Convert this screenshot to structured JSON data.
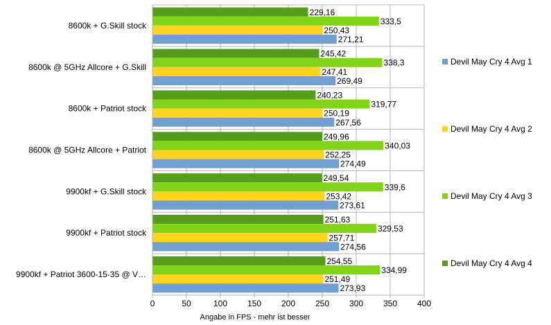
{
  "chart_data": {
    "type": "bar",
    "orientation": "horizontal",
    "title": "",
    "xlabel": "Angabe in FPS - mehr ist besser",
    "ylabel": "",
    "xlim": [
      0,
      400
    ],
    "xticks": [
      0,
      50,
      100,
      150,
      200,
      250,
      300,
      350,
      400
    ],
    "grid": true,
    "legend_position": "right",
    "categories": [
      "8600k + G.Skill stock",
      "8600k @ 5GHz Allcore + G.Skill",
      "8600k + Patriot stock",
      "8600k @ 5GHz Allcore + Patriot",
      "9900kf + G.Skill stock",
      "9900kf + Patriot stock",
      "9900kf + Patriot 3600-15-35 @ V…"
    ],
    "series": [
      {
        "name": "Devil May Cry 4 Avg 1",
        "color": "#729fcf",
        "values": [
          271.21,
          269.49,
          267.56,
          274.49,
          273.61,
          274.56,
          273.93
        ],
        "labels": [
          "271,21",
          "269,49",
          "267,56",
          "274,49",
          "273,61",
          "274,56",
          "273,93"
        ]
      },
      {
        "name": "Devil May Cry 4 Avg 2",
        "color": "#ffd320",
        "values": [
          250.43,
          247.41,
          250.19,
          252.25,
          253.42,
          257.71,
          251.49
        ],
        "labels": [
          "250,43",
          "247,41",
          "250,19",
          "252,25",
          "253,42",
          "257,71",
          "251,49"
        ]
      },
      {
        "name": "Devil May Cry 4 Avg 3",
        "color": "#81d41a",
        "values": [
          333.5,
          338.3,
          319.77,
          340.03,
          339.6,
          329.53,
          334.99
        ],
        "labels": [
          "333,5",
          "338,3",
          "319,77",
          "340,03",
          "339,6",
          "329,53",
          "334,99"
        ]
      },
      {
        "name": "Devil May Cry 4 Avg 4",
        "color": "#579d1c",
        "values": [
          229.16,
          245.42,
          240.23,
          249.96,
          249.54,
          251.63,
          254.55
        ],
        "labels": [
          "229,16",
          "245,42",
          "240,23",
          "249,96",
          "249,54",
          "251,63",
          "254,55"
        ]
      }
    ]
  }
}
